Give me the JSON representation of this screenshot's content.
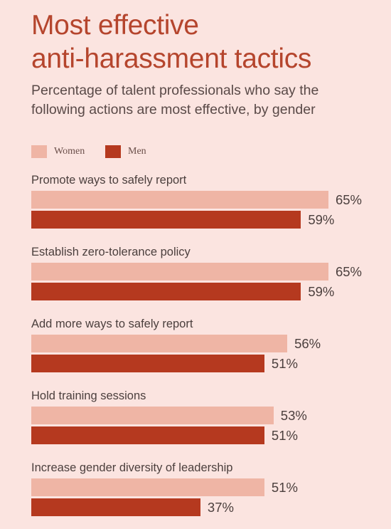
{
  "colors": {
    "women": "#efb5a5",
    "men": "#b5391f",
    "title": "#b5452d",
    "background": "#fbe4e0"
  },
  "chart_data": {
    "type": "bar",
    "orientation": "horizontal",
    "title_line1": "Most effective",
    "title_line2": "anti-harassment tactics",
    "subtitle_line1": "Percentage of talent professionals who say the",
    "subtitle_line2": "following actions are most effective, by gender",
    "legend": {
      "women": "Women",
      "men": "Men",
      "placement": "top-left"
    },
    "categories": [
      "Promote ways to safely report",
      "Establish zero-tolerance policy",
      "Add more ways to safely report",
      "Hold training sessions",
      "Increase gender diversity of leadership"
    ],
    "series": [
      {
        "name": "Women",
        "values": [
          65,
          65,
          56,
          53,
          51
        ],
        "labels": [
          "65%",
          "65%",
          "56%",
          "53%",
          "51%"
        ]
      },
      {
        "name": "Men",
        "values": [
          59,
          59,
          51,
          51,
          37
        ],
        "labels": [
          "59%",
          "59%",
          "51%",
          "51%",
          "37%"
        ]
      }
    ],
    "unit": "%",
    "xlim": [
      0,
      100
    ],
    "grid": false
  }
}
